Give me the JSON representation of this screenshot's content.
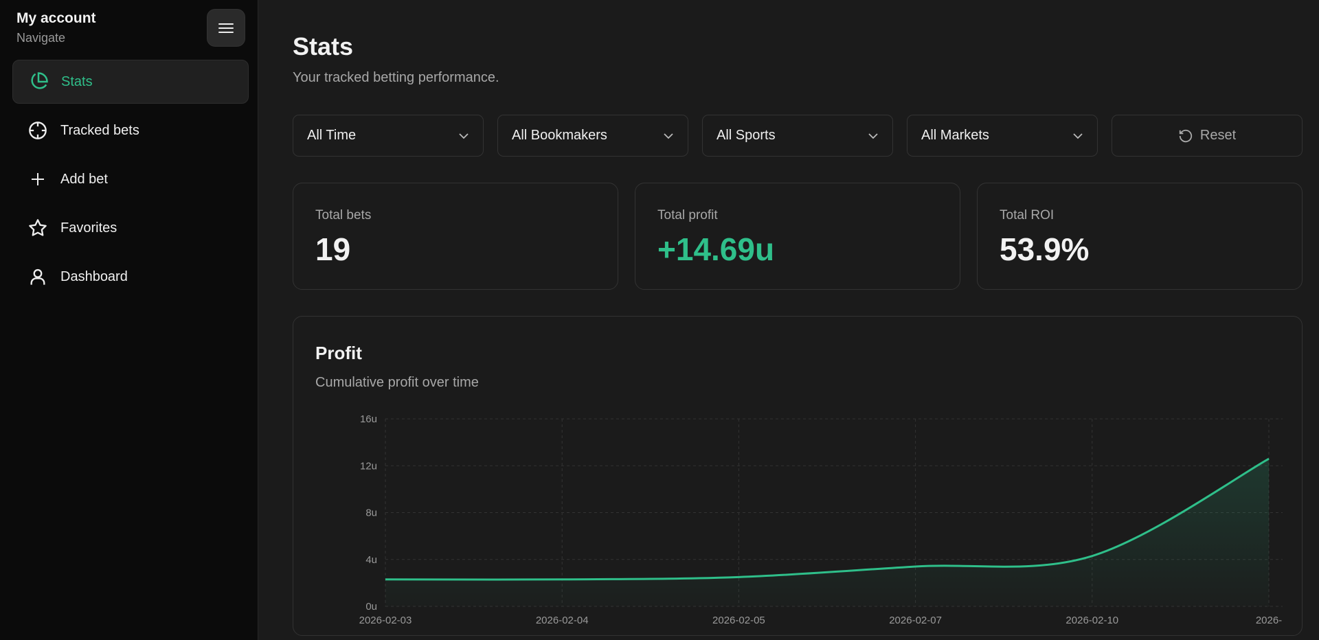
{
  "sidebar": {
    "title": "My account",
    "subtitle": "Navigate",
    "menu_icon": "hamburger-icon",
    "items": [
      {
        "label": "Stats",
        "icon": "pie-chart-icon",
        "active": true
      },
      {
        "label": "Tracked bets",
        "icon": "crosshair-icon"
      },
      {
        "label": "Add bet",
        "icon": "plus-icon"
      },
      {
        "label": "Favorites",
        "icon": "star-icon"
      },
      {
        "label": "Dashboard",
        "icon": "user-icon"
      }
    ]
  },
  "header": {
    "title": "Stats",
    "subtitle": "Your tracked betting performance."
  },
  "filters": [
    {
      "value": "All Time"
    },
    {
      "value": "All Bookmakers"
    },
    {
      "value": "All Sports"
    },
    {
      "value": "All Markets"
    }
  ],
  "reset_label": "Reset",
  "cards": [
    {
      "label": "Total bets",
      "value": "19"
    },
    {
      "label": "Total profit",
      "value": "+14.69u",
      "color": "#2fbf8a"
    },
    {
      "label": "Total ROI",
      "value": "53.9%"
    }
  ],
  "chart": {
    "title": "Profit",
    "subtitle": "Cumulative profit over time"
  },
  "chart_data": {
    "type": "area",
    "categories": [
      "2026-02-03",
      "2026-02-04",
      "2026-02-05",
      "2026-02-07",
      "2026-02-10",
      "2026-"
    ],
    "values": [
      2.3,
      2.3,
      2.5,
      3.4,
      4.3,
      12.6
    ],
    "yticks": [
      "0u",
      "4u",
      "8u",
      "12u",
      "16u"
    ],
    "ylim": [
      0,
      16
    ],
    "grid": true,
    "line_color": "#2fbf8a"
  },
  "colors": {
    "accent": "#2fbf8a"
  }
}
